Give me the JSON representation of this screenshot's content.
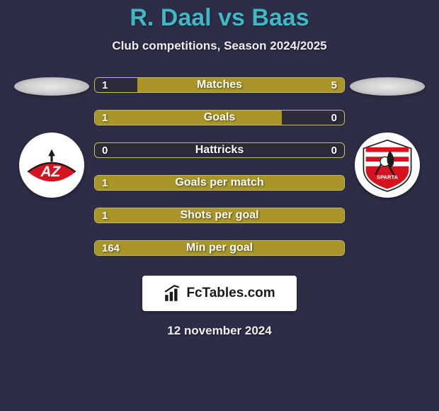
{
  "background_color": "#2d2d48",
  "title": {
    "text": "R. Daal vs Baas",
    "color": "#3fb8c4",
    "fontsize": 34
  },
  "subtitle": {
    "text": "Club competitions, Season 2024/2025",
    "color": "#eeeeee",
    "fontsize": 17
  },
  "left_club": {
    "name": "AZ Alkmaar",
    "logo_bg": "#ffffff",
    "logo_primary": "#d4131f",
    "logo_text": "AZ"
  },
  "right_club": {
    "name": "Sparta Rotterdam",
    "logo_bg": "#ffffff",
    "logo_red": "#d4131f",
    "logo_text": "SPARTA"
  },
  "bar_style": {
    "height": 22,
    "border_radius": 6,
    "olive": "#a99529",
    "olive_border": "#cbbf5a",
    "dark": "#2b2b3c",
    "label_color": "#ffffff",
    "label_fontsize": 16,
    "val_fontsize": 15
  },
  "stats": [
    {
      "label": "Matches",
      "left_val": "1",
      "right_val": "5",
      "left_pct": 17,
      "right_pct": 83,
      "show_right_val": true,
      "lead": "right"
    },
    {
      "label": "Goals",
      "left_val": "1",
      "right_val": "0",
      "left_pct": 75,
      "right_pct": 25,
      "show_right_val": true,
      "lead": "left"
    },
    {
      "label": "Hattricks",
      "left_val": "0",
      "right_val": "0",
      "left_pct": 0,
      "right_pct": 0,
      "show_right_val": true,
      "lead": "none"
    },
    {
      "label": "Goals per match",
      "left_val": "1",
      "right_val": "",
      "left_pct": 100,
      "right_pct": 0,
      "show_right_val": false,
      "lead": "left"
    },
    {
      "label": "Shots per goal",
      "left_val": "1",
      "right_val": "",
      "left_pct": 100,
      "right_pct": 0,
      "show_right_val": false,
      "lead": "left"
    },
    {
      "label": "Min per goal",
      "left_val": "164",
      "right_val": "",
      "left_pct": 100,
      "right_pct": 0,
      "show_right_val": false,
      "lead": "left"
    }
  ],
  "fctables": {
    "text": "FcTables.com",
    "bg": "#ffffff",
    "text_color": "#1a1a1a"
  },
  "date": {
    "text": "12 november 2024",
    "color": "#f0f0f0"
  }
}
